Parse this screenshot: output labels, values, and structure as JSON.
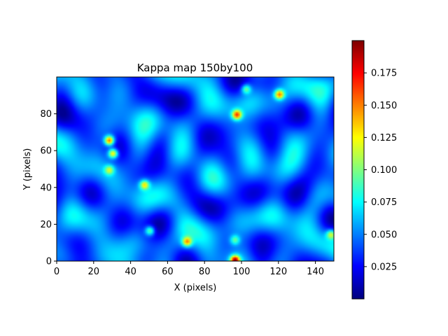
{
  "chart_data": {
    "type": "heatmap",
    "title": "Kappa map 150by100",
    "xlabel": "X (pixels)",
    "ylabel": "Y (pixels)",
    "xlim": [
      0,
      150
    ],
    "ylim": [
      0,
      100
    ],
    "x_ticks": [
      0,
      20,
      40,
      60,
      80,
      100,
      120,
      140
    ],
    "y_ticks": [
      0,
      20,
      40,
      60,
      80
    ],
    "grid": false,
    "colormap": "jet",
    "colorbar": {
      "vmin": 0.0,
      "vmax": 0.2,
      "ticks": [
        "0.025",
        "0.050",
        "0.075",
        "0.100",
        "0.125",
        "0.150",
        "0.175"
      ],
      "tick_values": [
        0.025,
        0.05,
        0.075,
        0.1,
        0.125,
        0.15,
        0.175
      ]
    },
    "grid_shape": [
      100,
      150
    ],
    "peaks": [
      {
        "x": 28,
        "y": 65,
        "value": 0.17
      },
      {
        "x": 30,
        "y": 58,
        "value": 0.15
      },
      {
        "x": 47,
        "y": 41,
        "value": 0.13
      },
      {
        "x": 50,
        "y": 16,
        "value": 0.12
      },
      {
        "x": 70,
        "y": 10,
        "value": 0.14
      },
      {
        "x": 97,
        "y": 79,
        "value": 0.16
      },
      {
        "x": 96,
        "y": 0,
        "value": 0.19
      },
      {
        "x": 120,
        "y": 90,
        "value": 0.15
      },
      {
        "x": 102,
        "y": 93,
        "value": 0.11
      },
      {
        "x": 28,
        "y": 49,
        "value": 0.11
      },
      {
        "x": 148,
        "y": 14,
        "value": 0.12
      },
      {
        "x": 96,
        "y": 11,
        "value": 0.1
      }
    ]
  }
}
